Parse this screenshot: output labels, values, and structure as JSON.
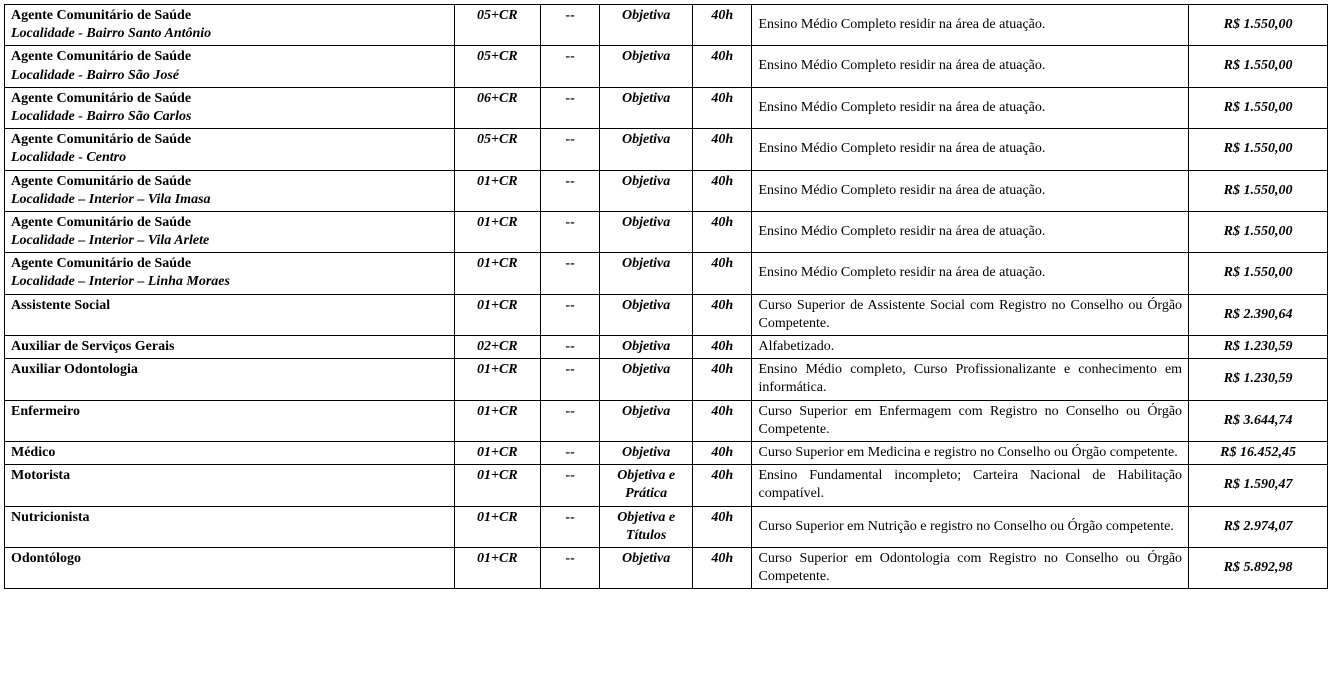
{
  "table": {
    "rows": [
      {
        "cargo": "Agente Comunitário de Saúde",
        "sub": "Localidade - Bairro Santo Antônio",
        "vagas": "05+CR",
        "dash": "--",
        "prova": "Objetiva",
        "ch": "40h",
        "req": "Ensino Médio Completo residir na área de atuação.",
        "sal": "R$ 1.550,00"
      },
      {
        "cargo": "Agente Comunitário de Saúde",
        "sub": "Localidade - Bairro São José",
        "vagas": "05+CR",
        "dash": "--",
        "prova": "Objetiva",
        "ch": "40h",
        "req": "Ensino Médio Completo residir na área de atuação.",
        "sal": "R$ 1.550,00"
      },
      {
        "cargo": "Agente Comunitário de Saúde",
        "sub": "Localidade - Bairro São Carlos",
        "vagas": "06+CR",
        "dash": "--",
        "prova": "Objetiva",
        "ch": "40h",
        "req": "Ensino Médio Completo residir na área de atuação.",
        "sal": "R$ 1.550,00"
      },
      {
        "cargo": "Agente Comunitário de Saúde",
        "sub": "Localidade - Centro",
        "vagas": "05+CR",
        "dash": "--",
        "prova": "Objetiva",
        "ch": "40h",
        "req": "Ensino Médio Completo residir na área de atuação.",
        "sal": "R$ 1.550,00"
      },
      {
        "cargo": "Agente Comunitário de Saúde",
        "sub": "Localidade – Interior – Vila Imasa",
        "vagas": "01+CR",
        "dash": "--",
        "prova": "Objetiva",
        "ch": "40h",
        "req": "Ensino Médio Completo residir na área de atuação.",
        "sal": "R$ 1.550,00"
      },
      {
        "cargo": "Agente Comunitário de Saúde",
        "sub": "Localidade – Interior – Vila Arlete",
        "vagas": "01+CR",
        "dash": "--",
        "prova": "Objetiva",
        "ch": "40h",
        "req": "Ensino Médio Completo residir na área de atuação.",
        "sal": "R$ 1.550,00"
      },
      {
        "cargo": "Agente Comunitário de Saúde",
        "sub": "Localidade – Interior – Linha Moraes",
        "vagas": "01+CR",
        "dash": "--",
        "prova": "Objetiva",
        "ch": "40h",
        "req": "Ensino Médio Completo residir na área de atuação.",
        "sal": "R$ 1.550,00"
      },
      {
        "cargo": "Assistente Social",
        "sub": "",
        "vagas": "01+CR",
        "dash": "--",
        "prova": "Objetiva",
        "ch": "40h",
        "req": "Curso Superior de Assistente Social com Registro no Conselho ou Órgão Competente.",
        "sal": "R$ 2.390,64"
      },
      {
        "cargo": "Auxiliar de Serviços Gerais",
        "sub": "",
        "vagas": "02+CR",
        "dash": "--",
        "prova": "Objetiva",
        "ch": "40h",
        "req": "Alfabetizado.",
        "sal": "R$ 1.230,59"
      },
      {
        "cargo": "Auxiliar Odontologia",
        "sub": "",
        "vagas": "01+CR",
        "dash": "--",
        "prova": "Objetiva",
        "ch": "40h",
        "req": "Ensino Médio completo, Curso Profissionalizante e conhecimento em informática.",
        "sal": "R$ 1.230,59"
      },
      {
        "cargo": "Enfermeiro",
        "sub": "",
        "vagas": "01+CR",
        "dash": "--",
        "prova": "Objetiva",
        "ch": "40h",
        "req": "Curso Superior em Enfermagem com Registro no Conselho ou Órgão Competente.",
        "sal": "R$ 3.644,74"
      },
      {
        "cargo": "Médico",
        "sub": "",
        "vagas": "01+CR",
        "dash": "--",
        "prova": "Objetiva",
        "ch": "40h",
        "req": "Curso Superior em Medicina e registro no Conselho ou Órgão competente.",
        "sal": "R$ 16.452,45"
      },
      {
        "cargo": "Motorista",
        "sub": "",
        "vagas": "01+CR",
        "dash": "--",
        "prova": "Objetiva e Prática",
        "ch": "40h",
        "req": "Ensino Fundamental incompleto; Carteira Nacional de Habilitação compatível.",
        "sal": "R$ 1.590,47"
      },
      {
        "cargo": "Nutricionista",
        "sub": "",
        "vagas": "01+CR",
        "dash": "--",
        "prova": "Objetiva e Títulos",
        "ch": "40h",
        "req": "Curso Superior em Nutrição e registro no Conselho ou Órgão competente.",
        "sal": "R$ 2.974,07"
      },
      {
        "cargo": "Odontólogo",
        "sub": "",
        "vagas": "01+CR",
        "dash": "--",
        "prova": "Objetiva",
        "ch": "40h",
        "req": "Curso Superior em Odontologia com Registro no Conselho ou Órgão Competente.",
        "sal": "R$ 5.892,98"
      }
    ]
  }
}
